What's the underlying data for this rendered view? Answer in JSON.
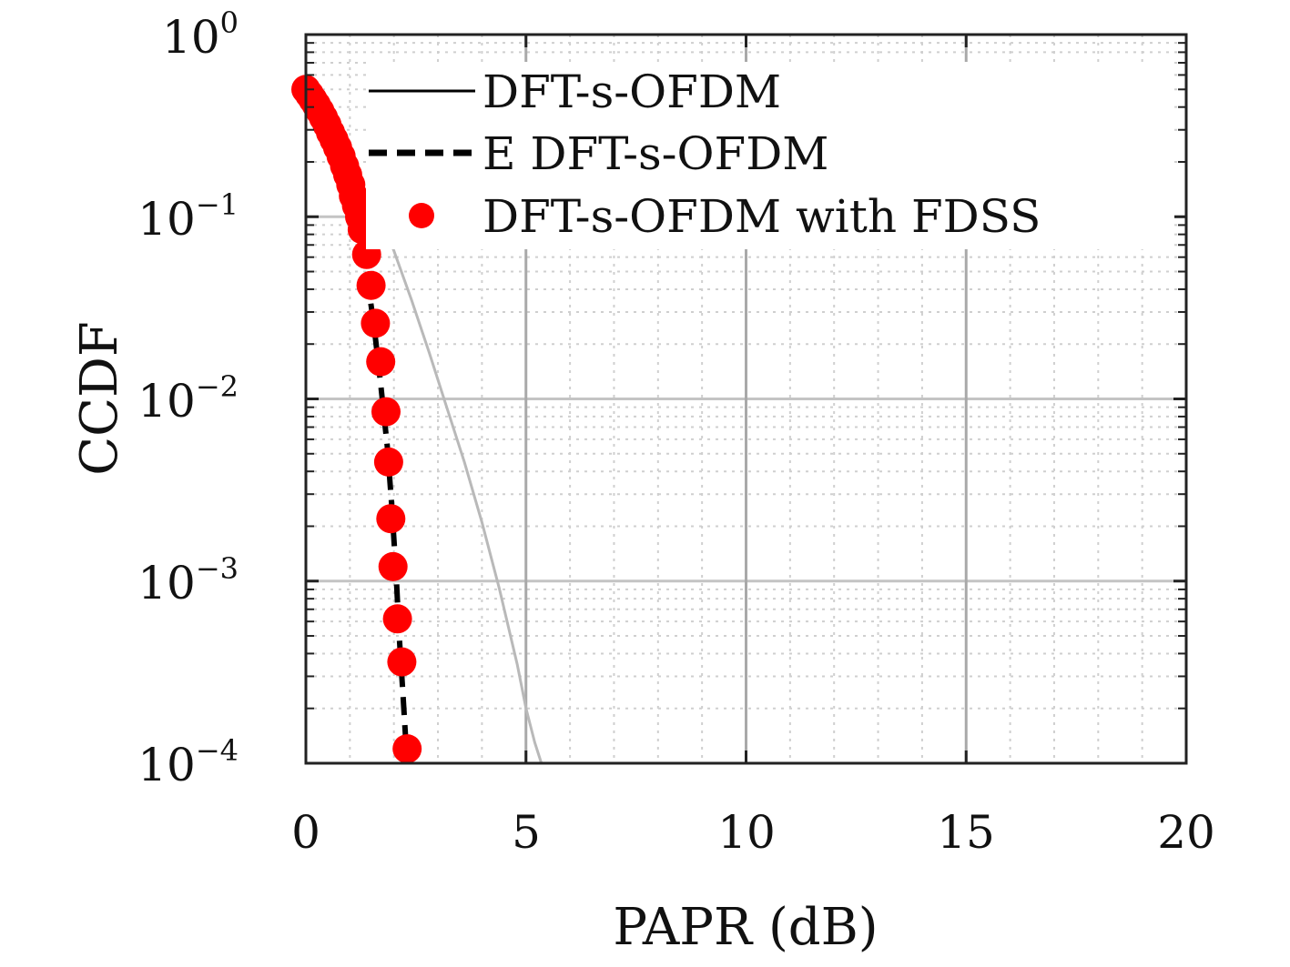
{
  "chart_data": {
    "type": "line",
    "xlabel": "PAPR (dB)",
    "ylabel": "CCDF",
    "x_scale": "linear",
    "y_scale": "log",
    "xlim": [
      0,
      20
    ],
    "ylim": [
      0.0001,
      1
    ],
    "x_ticks": [
      "0",
      "5",
      "10",
      "15",
      "20"
    ],
    "y_ticks": [
      {
        "base": "10",
        "exp": "0"
      },
      {
        "base": "10",
        "exp": "−1"
      },
      {
        "base": "10",
        "exp": "−2"
      },
      {
        "base": "10",
        "exp": "−3"
      },
      {
        "base": "10",
        "exp": "−4"
      }
    ],
    "grid": true,
    "minor_grid": true,
    "legend_position": "top-right",
    "series": [
      {
        "name": "DFT-s-OFDM",
        "style": "solid",
        "color": "#b9b9b9",
        "x": [
          0.0,
          0.4,
          0.8,
          1.2,
          1.6,
          2.0,
          2.4,
          2.8,
          3.2,
          3.6,
          4.0,
          4.4,
          4.8,
          5.0,
          5.2,
          5.35
        ],
        "y": [
          0.5,
          0.38,
          0.26,
          0.16,
          0.11,
          0.065,
          0.035,
          0.018,
          0.009,
          0.0045,
          0.0021,
          0.0009,
          0.00035,
          0.0002,
          0.00013,
          0.0001
        ]
      },
      {
        "name": "E DFT-s-OFDM",
        "style": "dashed",
        "color": "#000000",
        "x": [
          0.0,
          0.25,
          0.5,
          0.75,
          1.0,
          1.2,
          1.4,
          1.55,
          1.7,
          1.85,
          1.95,
          2.05,
          2.12,
          2.2,
          2.3
        ],
        "y": [
          0.5,
          0.4,
          0.3,
          0.21,
          0.13,
          0.085,
          0.045,
          0.025,
          0.012,
          0.0055,
          0.0026,
          0.0011,
          0.0005,
          0.00025,
          0.0001
        ]
      },
      {
        "name": "DFT-s-OFDM with FDSS",
        "style": "markers",
        "color": "#ff0000",
        "x": [
          0.0,
          0.08,
          0.16,
          0.24,
          0.32,
          0.4,
          0.48,
          0.56,
          0.64,
          0.72,
          0.8,
          0.88,
          0.95,
          1.02,
          1.08,
          1.15,
          1.22,
          1.28,
          1.38,
          1.48,
          1.58,
          1.7,
          1.82,
          1.88,
          1.93,
          1.98,
          2.08,
          2.18,
          2.3
        ],
        "y": [
          0.5,
          0.47,
          0.44,
          0.41,
          0.38,
          0.35,
          0.32,
          0.29,
          0.265,
          0.24,
          0.215,
          0.19,
          0.17,
          0.15,
          0.13,
          0.115,
          0.1,
          0.085,
          0.062,
          0.042,
          0.026,
          0.016,
          0.0085,
          0.0045,
          0.0022,
          0.0012,
          0.00062,
          0.00036,
          0.00012
        ]
      }
    ]
  }
}
